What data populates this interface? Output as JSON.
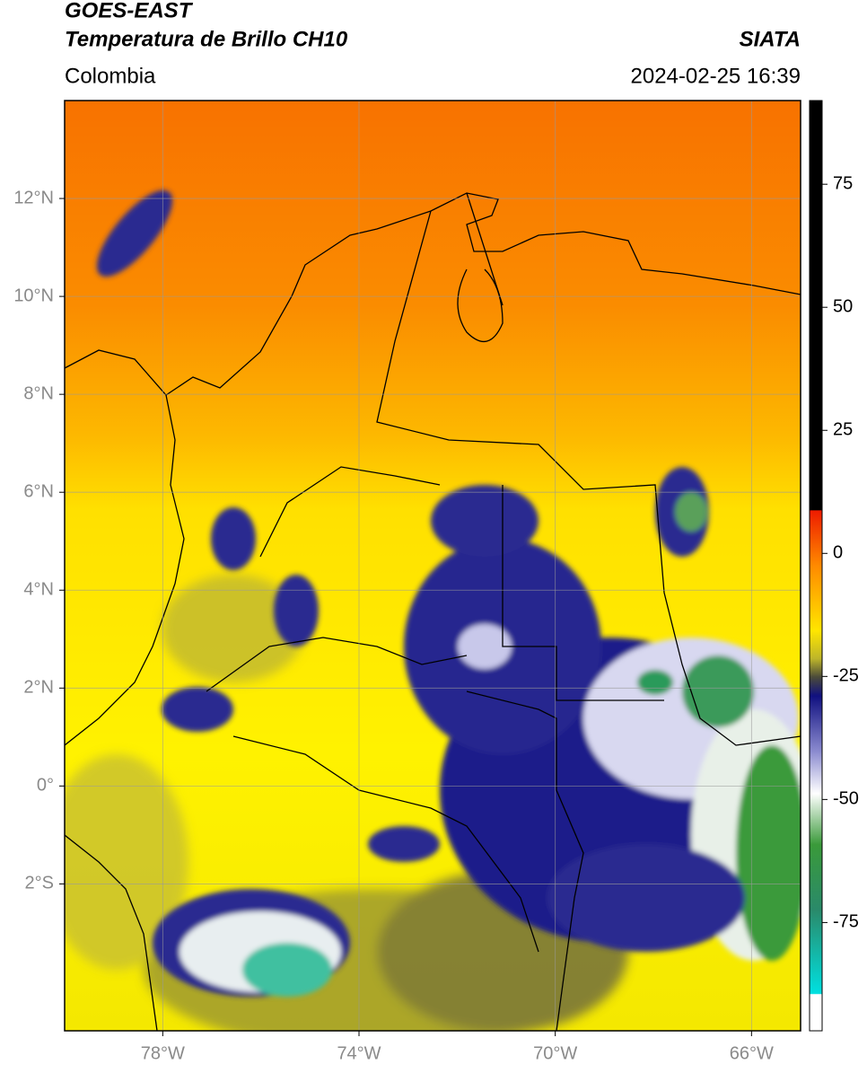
{
  "header": {
    "satellite": "GOES-EAST",
    "product": "Temperatura de Brillo CH10",
    "source": "SIATA",
    "region": "Colombia",
    "datetime": "2024-02-25 16:39"
  },
  "map": {
    "xlim": [
      -80,
      -65
    ],
    "ylim": [
      -5,
      14
    ],
    "xticks": [
      {
        "value": -78,
        "label": "78°W"
      },
      {
        "value": -74,
        "label": "74°W"
      },
      {
        "value": -70,
        "label": "70°W"
      },
      {
        "value": -66,
        "label": "66°W"
      }
    ],
    "yticks": [
      {
        "value": 12,
        "label": "12°N"
      },
      {
        "value": 10,
        "label": "10°N"
      },
      {
        "value": 8,
        "label": "8°N"
      },
      {
        "value": 6,
        "label": "6°N"
      },
      {
        "value": 4,
        "label": "4°N"
      },
      {
        "value": 2,
        "label": "2°N"
      },
      {
        "value": 0,
        "label": "0°"
      },
      {
        "value": -2,
        "label": "2°S"
      }
    ]
  },
  "colorbar": {
    "lim": [
      -97,
      92
    ],
    "ticks": [
      75,
      50,
      25,
      0,
      -25,
      -50,
      -75
    ]
  }
}
